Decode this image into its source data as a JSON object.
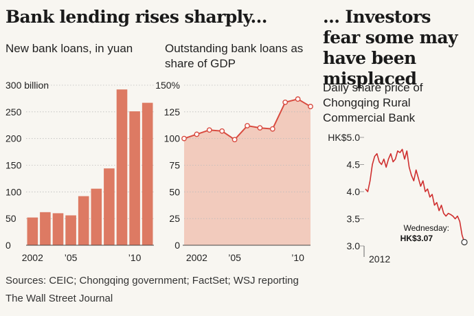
{
  "headline_left": "Bank lending rises sharply...",
  "headline_right": "... Investors fear some may have been misplaced",
  "sources": "Sources: CEIC; Chongqing government; FactSet; WSJ reporting",
  "credit": "The Wall Street Journal",
  "colors": {
    "bar": "#dd7a63",
    "line": "#d84a3f",
    "area": "#f2cbbd",
    "price_line": "#cf2e2e",
    "gridline": "#bbbbbb"
  },
  "chart_data": [
    {
      "type": "bar",
      "title": "New bank loans, in yuan",
      "categories": [
        "2002",
        "2003",
        "2004",
        "2005",
        "2006",
        "2007",
        "2008",
        "2009",
        "2010",
        "2011"
      ],
      "x_tick_labels": [
        "2002",
        "",
        "",
        "’05",
        "",
        "",
        "",
        "",
        "’10",
        ""
      ],
      "values": [
        52,
        62,
        60,
        56,
        92,
        106,
        144,
        292,
        251,
        267
      ],
      "ylim": [
        0,
        300
      ],
      "y_ticks": [
        0,
        50,
        100,
        150,
        200,
        250,
        300
      ],
      "y_tick_labels": [
        "0",
        "50",
        "100",
        "150",
        "200",
        "250",
        "300 billion"
      ],
      "grid": true
    },
    {
      "type": "area",
      "title": "Outstanding bank loans as share of GDP",
      "x": [
        "2001",
        "2002",
        "2003",
        "2004",
        "2005",
        "2006",
        "2007",
        "2008",
        "2009",
        "2010",
        "2011"
      ],
      "x_tick_labels": [
        "",
        "2002",
        "",
        "",
        "’05",
        "",
        "",
        "",
        "",
        "’10",
        ""
      ],
      "values": [
        100,
        104,
        108,
        107,
        99,
        112,
        110,
        109,
        134,
        137,
        130
      ],
      "ylim": [
        0,
        150
      ],
      "y_ticks": [
        0,
        25,
        50,
        75,
        100,
        125,
        150
      ],
      "y_tick_labels": [
        "0",
        "25",
        "50",
        "75",
        "100",
        "125",
        "150%"
      ],
      "grid": true
    },
    {
      "type": "line",
      "title": "Daily share price of Chongqing Rural Commercial Bank",
      "x_tick_labels": [
        "2012"
      ],
      "values": [
        4.05,
        4.0,
        4.2,
        4.5,
        4.65,
        4.7,
        4.55,
        4.5,
        4.6,
        4.45,
        4.6,
        4.7,
        4.55,
        4.6,
        4.75,
        4.72,
        4.78,
        4.6,
        4.75,
        4.45,
        4.3,
        4.2,
        4.4,
        4.25,
        4.1,
        4.2,
        4.0,
        4.05,
        3.9,
        3.95,
        3.75,
        3.8,
        3.65,
        3.75,
        3.6,
        3.55,
        3.6,
        3.58,
        3.55,
        3.5,
        3.55,
        3.45,
        3.2,
        3.07
      ],
      "ylim": [
        3.0,
        5.0
      ],
      "y_ticks": [
        3.0,
        3.5,
        4.0,
        4.5,
        5.0
      ],
      "y_tick_labels": [
        "3.0",
        "3.5",
        "4.0",
        "4.5",
        "HK$5.0"
      ],
      "annotation": {
        "label": "Wednesday:",
        "value": "HK$3.07"
      },
      "grid": false
    }
  ]
}
